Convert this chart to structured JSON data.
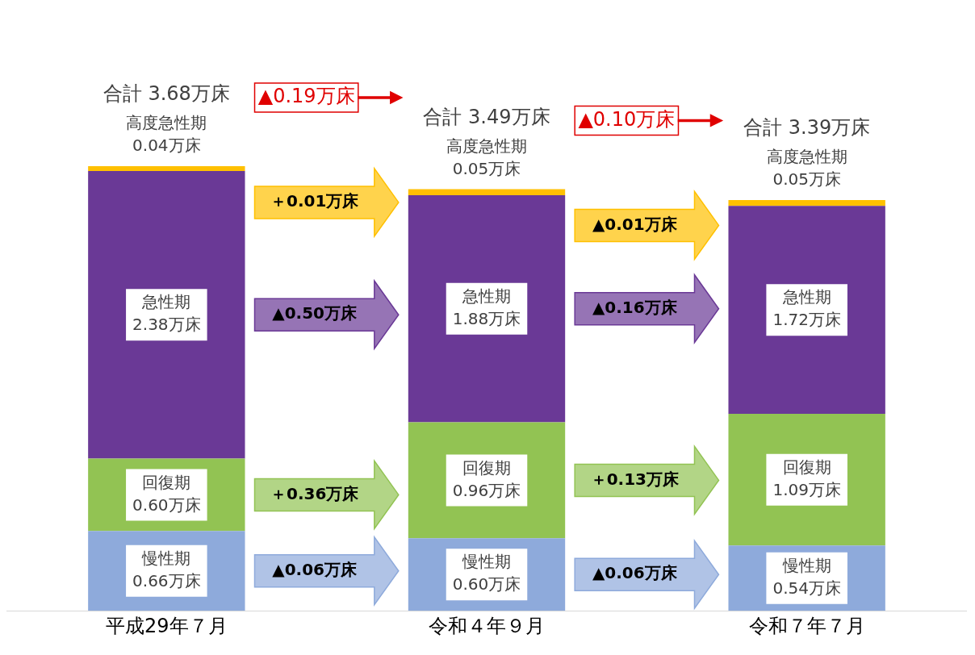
{
  "chart_data": {
    "type": "bar",
    "stacked": true,
    "categories": [
      "平成29年７月",
      "令和４年９月",
      "令和７年７月"
    ],
    "series": [
      {
        "name": "慢性期",
        "color": "#8eaadb",
        "values": [
          0.66,
          0.6,
          0.54
        ],
        "value_labels": [
          "0.66万床",
          "0.60万床",
          "0.54万床"
        ]
      },
      {
        "name": "回復期",
        "color": "#92c353",
        "values": [
          0.6,
          0.96,
          1.09
        ],
        "value_labels": [
          "0.60万床",
          "0.96万床",
          "1.09万床"
        ]
      },
      {
        "name": "急性期",
        "color": "#6a3996",
        "values": [
          2.38,
          1.88,
          1.72
        ],
        "value_labels": [
          "2.38万床",
          "1.88万床",
          "1.72万床"
        ]
      },
      {
        "name": "高度急性期",
        "color": "#ffc000",
        "values": [
          0.04,
          0.05,
          0.05
        ],
        "value_labels": [
          "0.04万床",
          "0.05万床",
          "0.05万床"
        ]
      }
    ],
    "totals": [
      "合計 3.68万床",
      "合計 3.49万床",
      "合計 3.39万床"
    ],
    "annotations": [
      "▲0.19万床",
      "＋0.01万床",
      "▲0.50万床",
      "＋0.36万床",
      "▲0.06万床",
      "▲0.10万床",
      "▲0.01万床",
      "▲0.16万床",
      "＋0.13万床",
      "▲0.06万床"
    ],
    "legend": false,
    "grid": false
  }
}
